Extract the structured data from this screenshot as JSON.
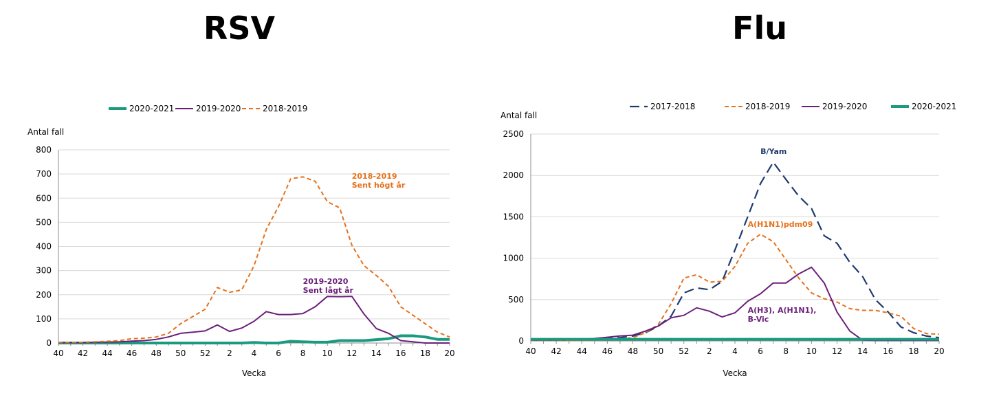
{
  "titles": {
    "left": "RSV",
    "right": "Flu"
  },
  "colors": {
    "green": "#1a9a7f",
    "purple": "#6b1f7b",
    "orange": "#e5711b",
    "navy": "#1f3a6e",
    "grid": "#d9d9d9",
    "axis": "#8c8c8c"
  },
  "chart_data": [
    {
      "type": "line",
      "title": "RSV",
      "xlabel": "Vecka",
      "ylabel": "Antal fall",
      "ylim": [
        0,
        800
      ],
      "yticks": [
        "0",
        "100",
        "200",
        "300",
        "400",
        "500",
        "600",
        "700",
        "800"
      ],
      "xticks": [
        "40",
        "42",
        "44",
        "46",
        "48",
        "50",
        "52",
        "2",
        "4",
        "6",
        "8",
        "10",
        "12",
        "14",
        "16",
        "18",
        "20"
      ],
      "x": [
        "40",
        "41",
        "42",
        "43",
        "44",
        "45",
        "46",
        "47",
        "48",
        "49",
        "50",
        "51",
        "52",
        "1",
        "2",
        "3",
        "4",
        "5",
        "6",
        "7",
        "8",
        "9",
        "10",
        "11",
        "12",
        "13",
        "14",
        "15",
        "16",
        "17",
        "18",
        "19",
        "20"
      ],
      "legend_position": "top",
      "series": [
        {
          "name": "2020-2021",
          "style": "thick-green",
          "values": [
            0,
            0,
            0,
            0,
            0,
            0,
            0,
            0,
            0,
            0,
            0,
            0,
            0,
            0,
            0,
            0,
            2,
            0,
            0,
            7,
            5,
            3,
            3,
            10,
            10,
            10,
            14,
            18,
            30,
            30,
            25,
            15,
            15
          ]
        },
        {
          "name": "2019-2020",
          "style": "purple",
          "values": [
            2,
            2,
            2,
            3,
            4,
            5,
            8,
            10,
            15,
            25,
            40,
            45,
            50,
            75,
            48,
            62,
            90,
            130,
            118,
            118,
            122,
            150,
            193,
            192,
            193,
            120,
            60,
            40,
            10,
            5,
            0,
            0,
            0
          ]
        },
        {
          "name": "2018-2019",
          "style": "dashed-orange",
          "values": [
            2,
            2,
            3,
            5,
            7,
            10,
            18,
            20,
            25,
            40,
            80,
            110,
            140,
            230,
            210,
            220,
            320,
            470,
            565,
            680,
            688,
            670,
            585,
            560,
            405,
            320,
            280,
            235,
            150,
            115,
            80,
            45,
            25
          ]
        }
      ],
      "annotations": [
        {
          "lines": [
            "2018-2019",
            "Sent högt år"
          ],
          "color": "orange",
          "x": "12",
          "y": 680
        },
        {
          "lines": [
            "2019-2020",
            "Sent lågt år"
          ],
          "color": "purple",
          "x": "8",
          "y": 245
        }
      ]
    },
    {
      "type": "line",
      "title": "Flu",
      "xlabel": "Vecka",
      "ylabel": "Antal fall",
      "ylim": [
        0,
        2500
      ],
      "yticks": [
        "0",
        "500",
        "1000",
        "1500",
        "2000",
        "2500"
      ],
      "xticks": [
        "40",
        "42",
        "44",
        "46",
        "48",
        "50",
        "52",
        "2",
        "4",
        "6",
        "8",
        "10",
        "12",
        "14",
        "16",
        "18",
        "20"
      ],
      "x": [
        "40",
        "41",
        "42",
        "43",
        "44",
        "45",
        "46",
        "47",
        "48",
        "49",
        "50",
        "51",
        "52",
        "1",
        "2",
        "3",
        "4",
        "5",
        "6",
        "7",
        "8",
        "9",
        "10",
        "11",
        "12",
        "13",
        "14",
        "15",
        "16",
        "17",
        "18",
        "19",
        "20"
      ],
      "legend_position": "top",
      "series": [
        {
          "name": "2017-2018",
          "style": "dashed-navy",
          "values": [
            10,
            10,
            10,
            10,
            15,
            20,
            30,
            40,
            60,
            100,
            180,
            300,
            580,
            640,
            620,
            720,
            1100,
            1500,
            1900,
            2160,
            1950,
            1750,
            1600,
            1270,
            1180,
            950,
            780,
            500,
            350,
            170,
            100,
            60,
            40
          ]
        },
        {
          "name": "2018-2019",
          "style": "dashed-orange",
          "values": [
            5,
            5,
            5,
            5,
            5,
            10,
            15,
            20,
            40,
            100,
            200,
            450,
            760,
            800,
            710,
            720,
            900,
            1180,
            1290,
            1200,
            980,
            760,
            580,
            510,
            470,
            390,
            370,
            370,
            340,
            300,
            150,
            90,
            80
          ]
        },
        {
          "name": "2019-2020",
          "style": "purple",
          "values": [
            10,
            10,
            10,
            15,
            20,
            30,
            45,
            60,
            70,
            120,
            180,
            280,
            310,
            400,
            360,
            290,
            340,
            480,
            570,
            700,
            700,
            810,
            890,
            700,
            350,
            120,
            10,
            5,
            5,
            5,
            5,
            5,
            5
          ]
        },
        {
          "name": "2020-2021",
          "style": "thick-green",
          "values": [
            20,
            20,
            20,
            20,
            20,
            20,
            20,
            20,
            20,
            20,
            20,
            20,
            20,
            20,
            20,
            20,
            20,
            20,
            20,
            20,
            20,
            20,
            20,
            20,
            20,
            20,
            20,
            20,
            20,
            20,
            20,
            20,
            20
          ]
        }
      ],
      "annotations": [
        {
          "lines": [
            "B/Yam"
          ],
          "color": "navy",
          "x": "6",
          "y": 2260
        },
        {
          "lines": [
            "A(H1N1)pdm09"
          ],
          "color": "orange",
          "x": "5",
          "y": 1380
        },
        {
          "lines": [
            "A(H3), A(H1N1),",
            "B-Vic"
          ],
          "color": "purple",
          "x": "5",
          "y": 340
        }
      ]
    }
  ]
}
